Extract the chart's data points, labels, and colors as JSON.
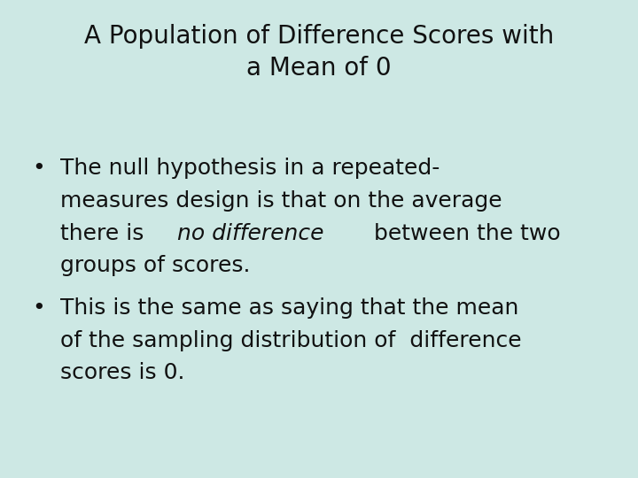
{
  "background_color": "#cde8e4",
  "title_line1": "A Population of Difference Scores with",
  "title_line2": "a Mean of 0",
  "title_fontsize": 20,
  "title_fontweight": "normal",
  "title_color": "#111111",
  "bullet_fontsize": 18,
  "bullet_color": "#111111",
  "bullet1_lines": [
    [
      [
        "The null hypothesis in a repeated-",
        "normal"
      ]
    ],
    [
      [
        "measures design is that on the average",
        "normal"
      ]
    ],
    [
      [
        "there is ",
        "normal"
      ],
      [
        "no difference",
        "italic"
      ],
      [
        " between the two",
        "normal"
      ]
    ],
    [
      [
        "groups of scores.",
        "normal"
      ]
    ]
  ],
  "bullet2_lines": [
    "This is the same as saying that the mean",
    "of the sampling distribution of  difference",
    "scores is 0."
  ],
  "fig_width": 7.2,
  "fig_height": 5.4,
  "fig_dpi": 100
}
